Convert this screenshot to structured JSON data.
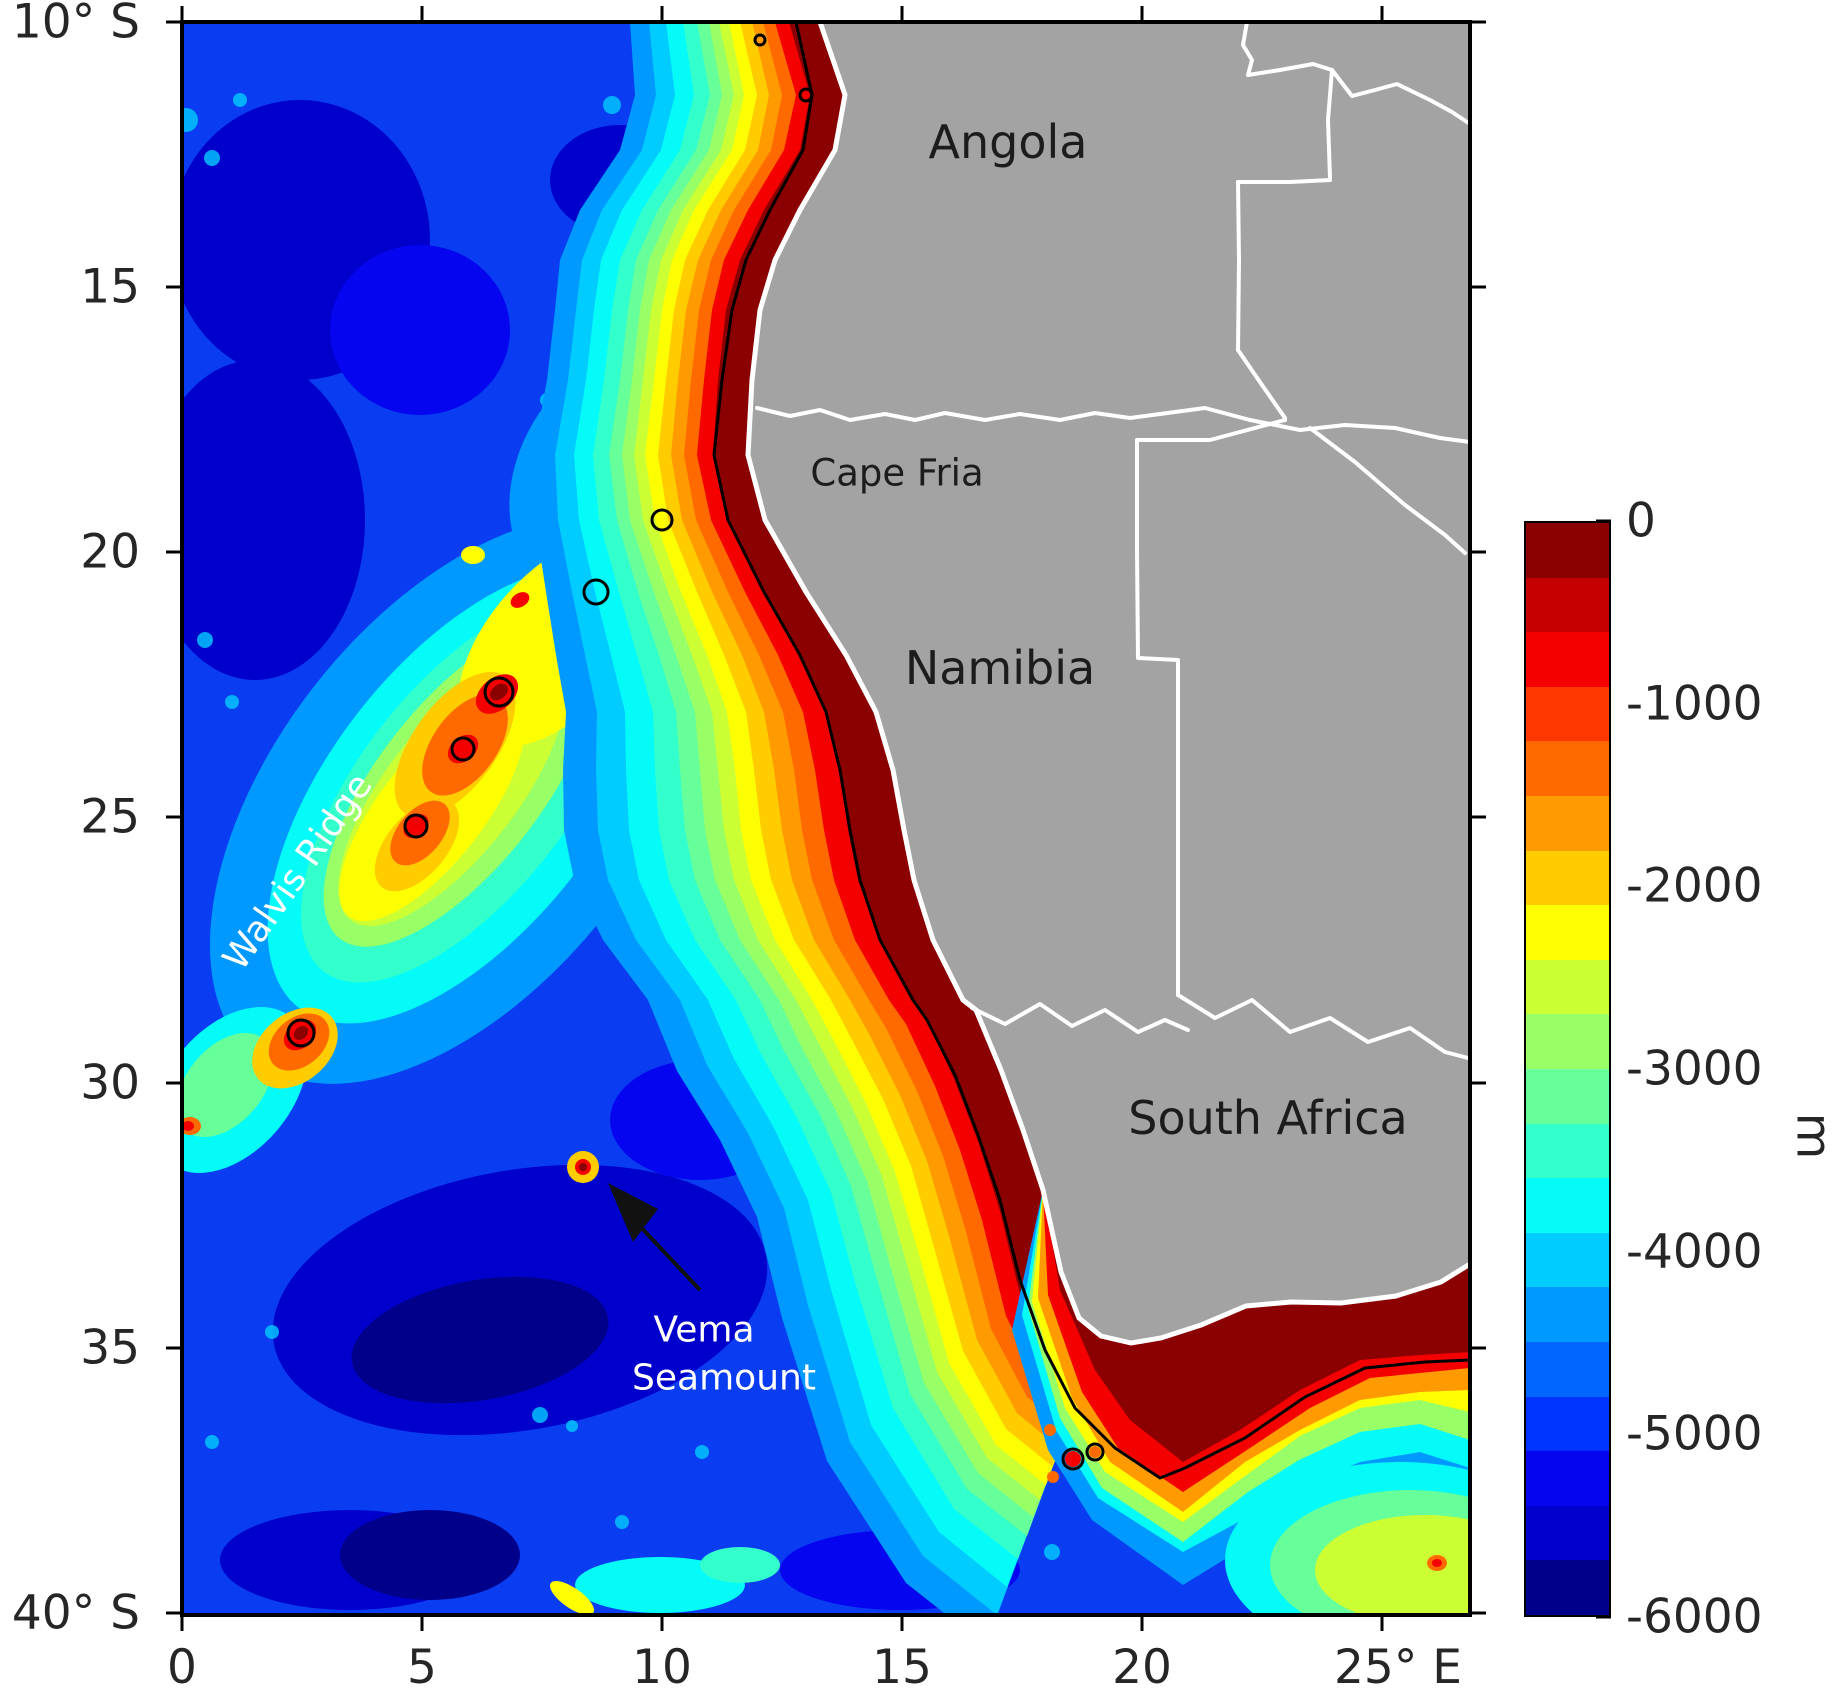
{
  "figure": {
    "kind": "bathymetry map of the southeast Atlantic off southwestern Africa"
  },
  "axes": {
    "y": {
      "labels": [
        "10° S",
        "15",
        "20",
        "25",
        "30",
        "35",
        "40° S"
      ]
    },
    "x": {
      "labels": [
        "0",
        "5",
        "10",
        "15",
        "20",
        "25° E"
      ]
    }
  },
  "colorbar": {
    "unit": "m",
    "tick_labels": [
      "0",
      "-1000",
      "-2000",
      "-3000",
      "-4000",
      "-5000",
      "-6000"
    ],
    "colors": [
      "#8b0000",
      "#c60000",
      "#f40000",
      "#ff3800",
      "#ff6a00",
      "#ff9b00",
      "#ffcc00",
      "#fefe02",
      "#ccff33",
      "#99ff66",
      "#66ff99",
      "#33ffcc",
      "#04fbf8",
      "#00ccff",
      "#0099ff",
      "#0066ff",
      "#0033ff",
      "#0505f0",
      "#0000cd",
      "#00008b"
    ]
  },
  "map": {
    "labels": {
      "angola": "Angola",
      "namibia": "Namibia",
      "south_africa": "South Africa",
      "cape_fria": "Cape Fria",
      "walvis_ridge": "Walvis Ridge",
      "vema_line1": "Vema",
      "vema_line2": "Seamount"
    },
    "land_color": "#a3a3a3",
    "coastline_color": "#ffffff",
    "shelf_contour_color": "#000000"
  },
  "chart_data": {
    "type": "heatmap",
    "variable": "seafloor depth (bathymetry)",
    "unit": "m",
    "colormap": "jet-like, 20 discrete bands of 300 m",
    "colorbar_range": [
      -6000,
      0
    ],
    "colorbar_ticks": [
      0,
      -1000,
      -2000,
      -3000,
      -4000,
      -5000,
      -6000
    ],
    "x_axis": {
      "ticks_deg_east": [
        0,
        5,
        10,
        15,
        20,
        25
      ],
      "range_deg_east": [
        0,
        26.8
      ]
    },
    "y_axis": {
      "ticks_deg_south": [
        10,
        15,
        20,
        25,
        30,
        35,
        40
      ],
      "range_deg_south": [
        10,
        40
      ]
    },
    "labeled_features": [
      {
        "name": "Walvis Ridge",
        "type": "ridge",
        "approx_track_lon_lat": [
          [
            2.3,
            -31
          ],
          [
            5.5,
            -25.5
          ],
          [
            10,
            -19.5
          ]
        ],
        "crest_depth_m": "-300 to -2000"
      },
      {
        "name": "Vema Seamount",
        "type": "seamount",
        "approx_lon_lat": [
          8.3,
          -31.6
        ],
        "summit_depth_m": "shallower than -300"
      },
      {
        "name": "Cape Fria",
        "type": "coastal cape",
        "approx_lon_lat": [
          11.8,
          -18.5
        ]
      }
    ],
    "countries_shown": [
      "Angola",
      "Namibia",
      "South Africa"
    ],
    "ocean_depth_pattern": "abyssal plains near -5000 m (blue) flank the NE-SW Walvis Ridge (-1000 to -3000 m, yellow/orange with red peaks); a narrow red shelf (0 to -600 m) hugs the coast, widening into the Agulhas Bank south of South Africa; black contour marks the shelf edge"
  }
}
